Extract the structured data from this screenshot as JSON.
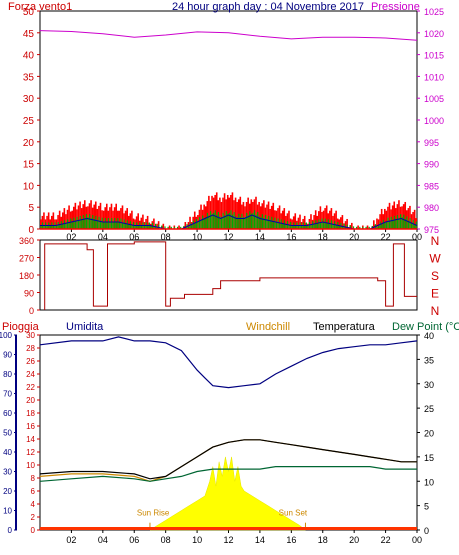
{
  "header": {
    "title": "24 hour graph day : 04 Novembre 2017",
    "left_label": "Forza vento1",
    "right_label": "Pressione"
  },
  "panel_labels": {
    "pioggia": "Pioggia",
    "umidita": "Umidita",
    "windchill": "Windchill",
    "temperatura": "Temperatura",
    "dew_point": "Dew Point (°C",
    "sun_rise": "Sun Rise",
    "sun_set": "Sun Set"
  },
  "colors": {
    "frame": "#000000",
    "wind_axis": "#cc0000",
    "pressure": "#cc00cc",
    "humidity": "#000080",
    "temperature": "#000000",
    "dewpoint": "#006633",
    "windchill": "#cc8800",
    "rain": "#cc0000",
    "solar": "#ffff00",
    "wind_gust": "#ff0000",
    "wind_green": "#00aa00",
    "wind_blue": "#0000aa"
  },
  "chart_data": [
    {
      "type": "line",
      "name": "wind-pressure",
      "x_tick_labels": [
        "02",
        "04",
        "06",
        "08",
        "10",
        "12",
        "14",
        "16",
        "18",
        "20",
        "22",
        "00"
      ],
      "left_axis": {
        "label": "Forza vento1",
        "ticks": [
          0,
          5,
          10,
          15,
          20,
          25,
          30,
          35,
          40,
          45,
          50
        ],
        "ylim": [
          0,
          50
        ]
      },
      "right_axis": {
        "label": "Pressione",
        "ticks": [
          975,
          980,
          985,
          990,
          995,
          1000,
          1005,
          1010,
          1015,
          1020,
          1025
        ],
        "ylim": [
          975,
          1025
        ]
      },
      "series": [
        {
          "name": "Pressione",
          "axis": "right",
          "x": [
            0,
            2,
            4,
            6,
            8,
            10,
            12,
            14,
            16,
            18,
            20,
            22,
            24
          ],
          "values": [
            1020.5,
            1020.3,
            1019.8,
            1019.0,
            1019.5,
            1020.2,
            1020.0,
            1019.2,
            1018.6,
            1019.0,
            1019.0,
            1018.8,
            1018.3
          ]
        },
        {
          "name": "gust",
          "axis": "left",
          "x": [
            0,
            1,
            2,
            3,
            4,
            5,
            6,
            7,
            8,
            9,
            10,
            10.5,
            11,
            11.5,
            12,
            12.5,
            13,
            13.5,
            14,
            15,
            16,
            17,
            18,
            19,
            20,
            21,
            21.5,
            22,
            23,
            24
          ],
          "values": [
            3,
            3,
            5,
            6,
            5,
            5,
            3,
            2,
            0,
            0,
            4,
            6,
            8,
            7,
            8,
            7,
            6,
            7,
            6,
            5,
            3,
            2,
            5,
            3,
            0,
            0,
            3,
            5,
            6,
            3
          ]
        },
        {
          "name": "wind",
          "axis": "left",
          "x": [
            0,
            1,
            2,
            3,
            4,
            5,
            6,
            7,
            8,
            9,
            10,
            10.5,
            11,
            11.5,
            12,
            12.5,
            13,
            13.5,
            14,
            15,
            16,
            17,
            18,
            19,
            20,
            21,
            21.5,
            22,
            23,
            24
          ],
          "values": [
            1,
            1,
            2,
            3,
            2,
            2,
            1,
            1,
            0,
            0,
            2,
            3,
            4,
            3,
            4,
            3,
            3,
            4,
            3,
            2,
            1,
            1,
            2,
            1,
            0,
            0,
            1,
            2,
            3,
            1
          ]
        }
      ]
    },
    {
      "type": "line",
      "name": "wind-direction",
      "y_ticks": [
        0,
        90,
        180,
        270,
        360
      ],
      "ylim": [
        0,
        360
      ],
      "right_labels": [
        "N",
        "W",
        "S",
        "E",
        "N"
      ],
      "series": [
        {
          "name": "direction",
          "x": [
            0.3,
            0.3,
            3.0,
            3.0,
            3.4,
            3.4,
            4.3,
            4.3,
            6.0,
            6.0,
            8.0,
            8.0,
            8.3,
            8.3,
            9.2,
            9.2,
            11.0,
            11.0,
            11.5,
            11.5,
            14.0,
            14.0,
            21.5,
            21.5,
            22.0,
            22.0,
            22.5,
            22.5,
            23.2,
            23.2,
            24.0
          ],
          "values": [
            0,
            340,
            340,
            310,
            310,
            20,
            20,
            340,
            340,
            350,
            350,
            20,
            20,
            60,
            60,
            80,
            80,
            110,
            110,
            150,
            150,
            165,
            165,
            150,
            150,
            20,
            20,
            340,
            340,
            70,
            70
          ]
        }
      ]
    },
    {
      "type": "line",
      "name": "humidity-temperature",
      "left_axis": {
        "label": "Umidita",
        "ticks": [
          0,
          10,
          20,
          30,
          40,
          50,
          60,
          70,
          80,
          90,
          100
        ],
        "ylim": [
          0,
          100
        ]
      },
      "rain_axis": {
        "label": "Pioggia",
        "ticks": [
          0,
          2,
          4,
          6,
          8,
          10,
          12,
          14,
          16,
          18,
          20,
          22,
          24,
          26,
          28,
          30
        ],
        "ylim": [
          0,
          30
        ]
      },
      "right_axis": {
        "label": "Temperatura",
        "ticks": [
          0,
          5,
          10,
          15,
          20,
          25,
          30,
          35,
          40
        ],
        "ylim": [
          0,
          40
        ]
      },
      "x_tick_labels": [
        "02",
        "04",
        "06",
        "08",
        "10",
        "12",
        "14",
        "16",
        "18",
        "20",
        "22",
        "00"
      ],
      "series": [
        {
          "name": "Umidita",
          "axis": "left",
          "x": [
            0,
            2,
            4,
            5,
            6,
            7,
            8,
            9,
            10,
            10.5,
            11,
            12,
            13,
            14,
            15,
            16,
            17,
            18,
            19,
            20,
            21,
            22,
            23,
            24
          ],
          "values": [
            95,
            97,
            97,
            99,
            97,
            97,
            96,
            92,
            82,
            78,
            74,
            73,
            74,
            75,
            80,
            84,
            88,
            91,
            93,
            94,
            95,
            95,
            96,
            97
          ]
        },
        {
          "name": "Temperatura",
          "axis": "right",
          "x": [
            0,
            2,
            4,
            6,
            7,
            8,
            9,
            10,
            11,
            12,
            13,
            14,
            15,
            16,
            17,
            18,
            19,
            20,
            21,
            22,
            23,
            24
          ],
          "values": [
            11.5,
            12,
            12,
            11.5,
            10.5,
            11,
            13,
            15,
            17,
            18,
            18.5,
            18.5,
            18,
            17.5,
            17,
            16.5,
            16,
            15.5,
            15,
            14.5,
            14,
            14
          ]
        },
        {
          "name": "Dew Point",
          "axis": "right",
          "x": [
            0,
            2,
            4,
            6,
            7,
            8,
            9,
            10,
            11,
            12,
            13,
            14,
            15,
            16,
            17,
            18,
            19,
            20,
            21,
            22,
            23,
            24
          ],
          "values": [
            10,
            10.5,
            11,
            10.5,
            10,
            10.5,
            11,
            12,
            12.5,
            12.5,
            12.5,
            12.5,
            13,
            13,
            13,
            13,
            13,
            13,
            13,
            12.5,
            12.5,
            12.5
          ]
        },
        {
          "name": "Windchill",
          "axis": "right",
          "x": [
            0,
            2,
            4,
            6,
            7,
            8,
            9,
            10,
            11,
            12,
            13,
            14,
            15,
            16,
            17,
            18,
            19,
            20,
            21,
            22,
            23,
            24
          ],
          "values": [
            11,
            11.5,
            11.5,
            11,
            10,
            11,
            13,
            15,
            17,
            18,
            18.5,
            18.5,
            18,
            17.5,
            17,
            16.5,
            16,
            15.5,
            15,
            14.5,
            14,
            14
          ]
        },
        {
          "name": "Solar",
          "axis": "right",
          "x": [
            7.0,
            7.5,
            8,
            8.5,
            9,
            9.5,
            10,
            10.5,
            10.8,
            11.0,
            11.2,
            11.4,
            11.6,
            11.8,
            12.0,
            12.2,
            12.4,
            12.6,
            12.8,
            13.0,
            13.5,
            14,
            14.5,
            15,
            15.5,
            16,
            16.5,
            16.9
          ],
          "values": [
            0,
            1,
            2,
            3,
            4,
            5,
            6,
            7,
            10,
            13,
            9,
            14,
            11,
            15,
            12,
            15,
            10,
            13,
            9,
            8,
            7,
            6,
            5,
            4,
            3,
            2,
            1,
            0
          ]
        }
      ],
      "annotations": [
        "Sun Rise",
        "Sun Set"
      ]
    }
  ]
}
